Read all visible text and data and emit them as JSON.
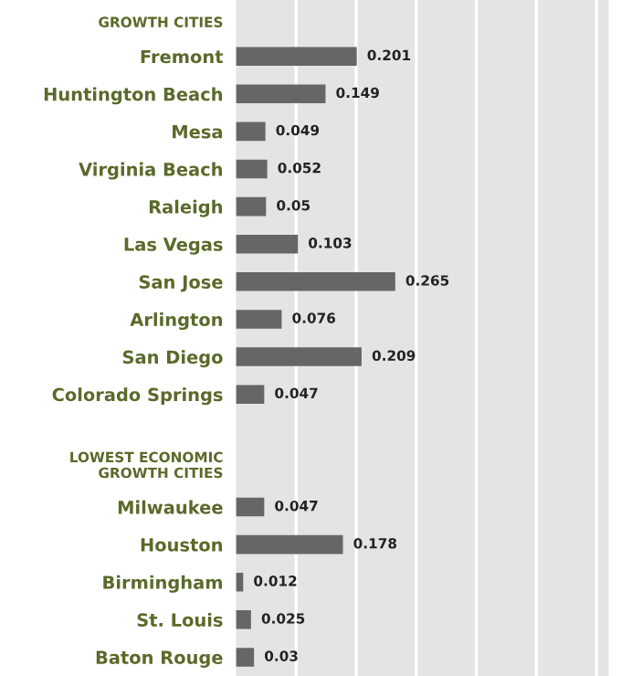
{
  "chart_data": {
    "type": "bar",
    "orientation": "horizontal",
    "categories": [
      null,
      "Fremont",
      "Huntington Beach",
      "Mesa",
      "Virginia Beach",
      "Raleigh",
      "Las Vegas",
      "San Jose",
      "Arlington",
      "San Diego",
      "Colorado Springs",
      null,
      null,
      "Milwaukee",
      "Houston",
      "Birmingham",
      "St. Louis",
      "Baton Rouge"
    ],
    "values": [
      null,
      0.201,
      0.149,
      0.049,
      0.052,
      0.05,
      0.103,
      0.265,
      0.076,
      0.209,
      0.047,
      null,
      null,
      0.047,
      0.178,
      0.012,
      0.025,
      0.03
    ],
    "color": "#666666",
    "data_labels": true,
    "xlim": [
      0,
      0.62
    ],
    "xticks": [
      {
        "value": 0.1,
        "label": null
      },
      {
        "value": 0.2,
        "label": null
      },
      {
        "value": 0.3,
        "label": null
      },
      {
        "value": 0.4,
        "label": null
      },
      {
        "value": 0.5,
        "label": null
      },
      {
        "value": 0.6,
        "label": null
      }
    ],
    "grid": "x",
    "tick_labels": "y",
    "annotations": [
      "GROWTH CITIES",
      "LOWEST ECONOMIC\nGROWTH CITIES"
    ]
  }
}
